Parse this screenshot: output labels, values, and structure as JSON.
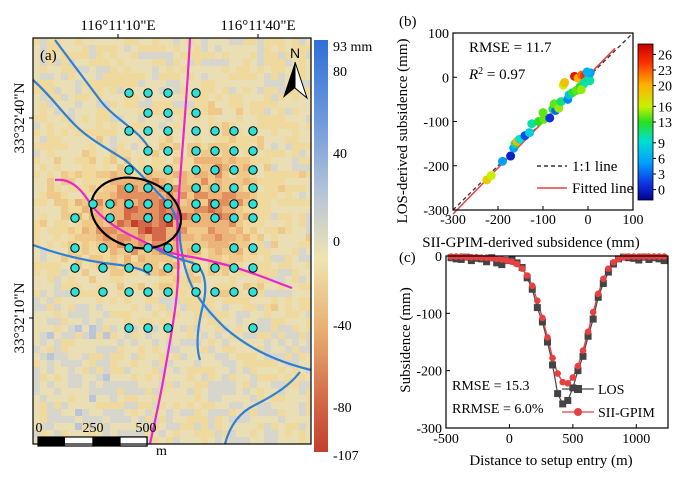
{
  "panel_a": {
    "label": "(a)",
    "lon_ticks": [
      "116°11'10\"E",
      "116°11'40\"E"
    ],
    "lat_ticks": [
      "33°32'40\"N",
      "33°32'10\"N"
    ],
    "north_label": "N",
    "colorbar_ticks": [
      "93 mm",
      "80",
      "40",
      "0",
      "-40",
      "-80",
      "-107"
    ],
    "colorbar_range_mm": [
      -107,
      93
    ],
    "scalebar_ticks": [
      "0",
      "250",
      "500"
    ],
    "scalebar_unit": "m"
  },
  "chart_data": [
    {
      "panel": "(b)",
      "type": "scatter",
      "xlabel": "SII-GPIM-derived subsidence (mm)",
      "ylabel": "LOS-derived subsidence (mm)",
      "xlim": [
        -300,
        100
      ],
      "ylim": [
        -300,
        100
      ],
      "x_ticks": [
        "-300",
        "-200",
        "-100",
        "0",
        "100"
      ],
      "y_ticks": [
        "100",
        "0",
        "-100",
        "-200",
        "-300"
      ],
      "annotations": [
        "RMSE = 11.7",
        "R",
        "2",
        " = 0.97"
      ],
      "legend": [
        "1:1 line",
        "Fitted line"
      ],
      "legend_position": "center-right",
      "colorbar_ticks": [
        "26",
        "23",
        "20",
        "16",
        "13",
        "9",
        "6",
        "3",
        "0"
      ],
      "colorbar_range": [
        -2,
        28
      ],
      "points": [
        {
          "x": -225,
          "y": -232,
          "c": 18
        },
        {
          "x": -215,
          "y": -222,
          "c": 16
        },
        {
          "x": -172,
          "y": -178,
          "c": 0
        },
        {
          "x": -165,
          "y": -160,
          "c": 5
        },
        {
          "x": -162,
          "y": -150,
          "c": 11
        },
        {
          "x": -158,
          "y": -145,
          "c": 20
        },
        {
          "x": -152,
          "y": -140,
          "c": 9
        },
        {
          "x": -140,
          "y": -132,
          "c": 2
        },
        {
          "x": -130,
          "y": -125,
          "c": 8
        },
        {
          "x": -125,
          "y": -105,
          "c": 10
        },
        {
          "x": -110,
          "y": -100,
          "c": 13
        },
        {
          "x": -98,
          "y": -95,
          "c": 14
        },
        {
          "x": -85,
          "y": -92,
          "c": 1
        },
        {
          "x": -78,
          "y": -72,
          "c": 12
        },
        {
          "x": -72,
          "y": -75,
          "c": 3
        },
        {
          "x": -75,
          "y": -60,
          "c": 14
        },
        {
          "x": -65,
          "y": -70,
          "c": 15
        },
        {
          "x": -60,
          "y": -55,
          "c": 11
        },
        {
          "x": -55,
          "y": -18,
          "c": 16
        },
        {
          "x": -52,
          "y": -12,
          "c": 19
        },
        {
          "x": -45,
          "y": -50,
          "c": 4
        },
        {
          "x": -42,
          "y": -40,
          "c": 7
        },
        {
          "x": -35,
          "y": -35,
          "c": 12
        },
        {
          "x": -30,
          "y": 2,
          "c": 26
        },
        {
          "x": -26,
          "y": -30,
          "c": 14
        },
        {
          "x": -22,
          "y": -2,
          "c": 20
        },
        {
          "x": -18,
          "y": -22,
          "c": 13
        },
        {
          "x": -14,
          "y": 5,
          "c": 22
        },
        {
          "x": -10,
          "y": -15,
          "c": 11
        },
        {
          "x": -8,
          "y": 3,
          "c": 24
        },
        {
          "x": -5,
          "y": -10,
          "c": 9
        },
        {
          "x": -3,
          "y": 8,
          "c": 25
        },
        {
          "x": 0,
          "y": -5,
          "c": 12
        },
        {
          "x": 2,
          "y": -2,
          "c": 8
        },
        {
          "x": 4,
          "y": -8,
          "c": 10
        },
        {
          "x": 5,
          "y": 10,
          "c": 5
        },
        {
          "x": -2,
          "y": 12,
          "c": 6
        },
        {
          "x": -15,
          "y": -28,
          "c": 15
        },
        {
          "x": -100,
          "y": -80,
          "c": 14
        },
        {
          "x": -190,
          "y": -190,
          "c": 5
        }
      ],
      "fit": {
        "slope": 1.04,
        "intercept": 3
      }
    },
    {
      "panel": "(c)",
      "type": "line",
      "xlabel": "Distance to setup entry (m)",
      "ylabel": "Subsidence (mm)",
      "xlim": [
        -500,
        1250
      ],
      "ylim": [
        -300,
        0
      ],
      "x_ticks": [
        "-500",
        "0",
        "500",
        "1000"
      ],
      "y_ticks": [
        "0",
        "-100",
        "-200",
        "-300"
      ],
      "annotations": [
        "RMSE = 15.3",
        "RRMSE = 6.0%"
      ],
      "legend_position": "lower-right",
      "x": [
        -460,
        -420,
        -380,
        -340,
        -300,
        -260,
        -220,
        -180,
        -140,
        -100,
        -60,
        -20,
        20,
        60,
        100,
        140,
        180,
        220,
        260,
        300,
        340,
        380,
        420,
        460,
        500,
        540,
        580,
        620,
        660,
        700,
        740,
        780,
        820,
        860,
        900,
        940,
        980,
        1020,
        1060,
        1100,
        1140,
        1180,
        1220
      ],
      "series": [
        {
          "name": "LOS",
          "values": [
            -3,
            -5,
            -6,
            -2,
            -8,
            -4,
            -5,
            -10,
            -3,
            -12,
            -15,
            -8,
            -6,
            -12,
            -20,
            -38,
            -58,
            -90,
            -115,
            -150,
            -190,
            -240,
            -258,
            -252,
            -230,
            -200,
            -175,
            -140,
            -110,
            -72,
            -48,
            -28,
            -14,
            -5,
            -2,
            -3,
            -4,
            -7,
            -2,
            -6,
            -3,
            -5,
            -8
          ]
        },
        {
          "name": "SII-GPIM",
          "values": [
            -1,
            -1,
            -1,
            -2,
            -2,
            -2,
            -3,
            -3,
            -4,
            -5,
            -6,
            -8,
            -10,
            -14,
            -22,
            -34,
            -52,
            -78,
            -108,
            -142,
            -178,
            -205,
            -220,
            -222,
            -212,
            -192,
            -165,
            -132,
            -98,
            -66,
            -40,
            -22,
            -11,
            -5,
            -2,
            -1,
            -1,
            -1,
            -1,
            -1,
            -1,
            -1,
            -1
          ]
        }
      ]
    }
  ]
}
